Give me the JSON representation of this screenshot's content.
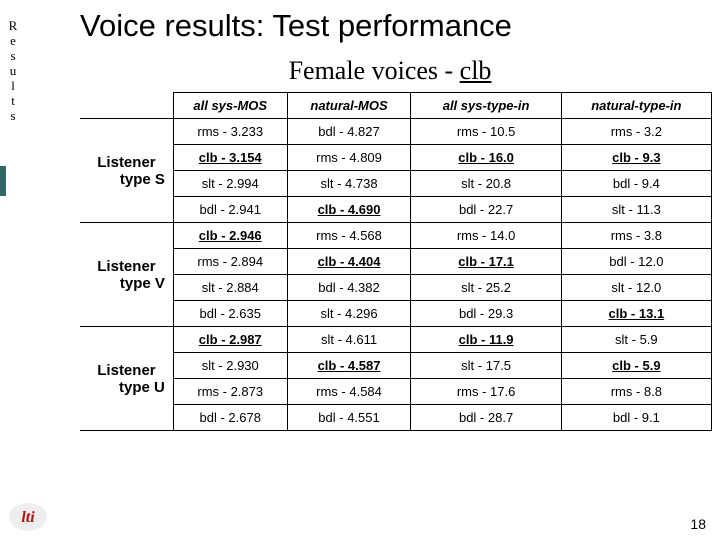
{
  "vertical_label": "Results",
  "title": "Voice results: Test performance",
  "subtitle_pre": "Female voices - ",
  "subtitle_emph": "clb",
  "headers": {
    "c1": "all sys-MOS",
    "c2": "natural-MOS",
    "c3": "all sys-type-in",
    "c4": "natural-type-in"
  },
  "groups": [
    {
      "label_l1": "Listener",
      "label_l2": "type S",
      "rows": [
        [
          {
            "t": "rms - 3.233",
            "h": false
          },
          {
            "t": "bdl - 4.827",
            "h": false
          },
          {
            "t": "rms - 10.5",
            "h": false
          },
          {
            "t": "rms - 3.2",
            "h": false
          }
        ],
        [
          {
            "t": "clb - 3.154",
            "h": true
          },
          {
            "t": "rms - 4.809",
            "h": false
          },
          {
            "t": "clb - 16.0",
            "h": true
          },
          {
            "t": "clb - 9.3",
            "h": true
          }
        ],
        [
          {
            "t": "slt - 2.994",
            "h": false
          },
          {
            "t": "slt - 4.738",
            "h": false
          },
          {
            "t": "slt - 20.8",
            "h": false
          },
          {
            "t": "bdl - 9.4",
            "h": false
          }
        ],
        [
          {
            "t": "bdl - 2.941",
            "h": false
          },
          {
            "t": "clb - 4.690",
            "h": true
          },
          {
            "t": "bdl - 22.7",
            "h": false
          },
          {
            "t": "slt - 11.3",
            "h": false
          }
        ]
      ]
    },
    {
      "label_l1": "Listener",
      "label_l2": "type V",
      "rows": [
        [
          {
            "t": "clb - 2.946",
            "h": true
          },
          {
            "t": "rms - 4.568",
            "h": false
          },
          {
            "t": "rms - 14.0",
            "h": false
          },
          {
            "t": "rms - 3.8",
            "h": false
          }
        ],
        [
          {
            "t": "rms - 2.894",
            "h": false
          },
          {
            "t": "clb - 4.404",
            "h": true
          },
          {
            "t": "clb - 17.1",
            "h": true
          },
          {
            "t": "bdl - 12.0",
            "h": false
          }
        ],
        [
          {
            "t": "slt - 2.884",
            "h": false
          },
          {
            "t": "bdl - 4.382",
            "h": false
          },
          {
            "t": "slt - 25.2",
            "h": false
          },
          {
            "t": "slt - 12.0",
            "h": false
          }
        ],
        [
          {
            "t": "bdl - 2.635",
            "h": false
          },
          {
            "t": "slt - 4.296",
            "h": false
          },
          {
            "t": "bdl - 29.3",
            "h": false
          },
          {
            "t": "clb - 13.1",
            "h": true
          }
        ]
      ]
    },
    {
      "label_l1": "Listener",
      "label_l2": "type U",
      "rows": [
        [
          {
            "t": "clb - 2.987",
            "h": true
          },
          {
            "t": "slt - 4.611",
            "h": false
          },
          {
            "t": "clb - 11.9",
            "h": true
          },
          {
            "t": "slt - 5.9",
            "h": false
          }
        ],
        [
          {
            "t": "slt - 2.930",
            "h": false
          },
          {
            "t": "clb - 4.587",
            "h": true
          },
          {
            "t": "slt - 17.5",
            "h": false
          },
          {
            "t": "clb - 5.9",
            "h": true
          }
        ],
        [
          {
            "t": "rms - 2.873",
            "h": false
          },
          {
            "t": "rms - 4.584",
            "h": false
          },
          {
            "t": "rms - 17.6",
            "h": false
          },
          {
            "t": "rms - 8.8",
            "h": false
          }
        ],
        [
          {
            "t": "bdl - 2.678",
            "h": false
          },
          {
            "t": "bdl - 4.551",
            "h": false
          },
          {
            "t": "bdl - 28.7",
            "h": false
          },
          {
            "t": "bdl - 9.1",
            "h": false
          }
        ]
      ]
    }
  ],
  "page_number": "18",
  "logo_bg": "#eeeeee",
  "logo_fg": "#b01010",
  "logo_text": "lti"
}
